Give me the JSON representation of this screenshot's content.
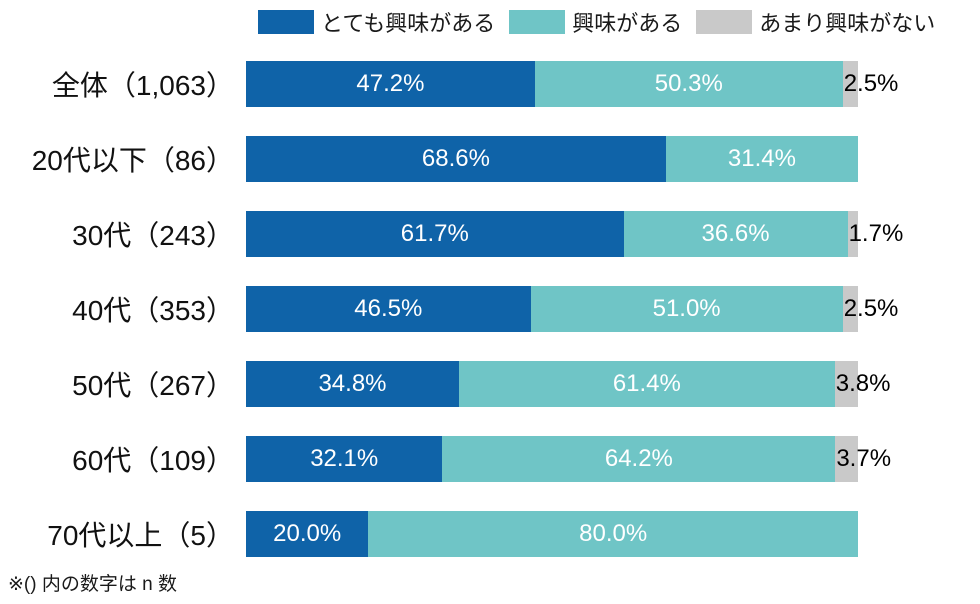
{
  "legend": [
    {
      "label": "とても興味がある",
      "color": "#0F63A8"
    },
    {
      "label": "興味がある",
      "color": "#6FC5C6"
    },
    {
      "label": "あまり興味がない",
      "color": "#C9C9C9"
    }
  ],
  "footnote": "※() 内の数字は n 数",
  "chart_data": {
    "type": "bar",
    "orientation": "horizontal-stacked",
    "title": "",
    "xlabel": "",
    "ylabel": "",
    "xlim": [
      0,
      100
    ],
    "grid": false,
    "legend_position": "top",
    "value_suffix": "%",
    "value_decimals": 1,
    "categories": [
      "全体（1,063）",
      "20代以下（86）",
      "30代（243）",
      "40代（353）",
      "50代（267）",
      "60代（109）",
      "70代以上（5）"
    ],
    "series": [
      {
        "name": "とても興味がある",
        "color": "#0F63A8",
        "values": [
          47.2,
          68.6,
          61.7,
          46.5,
          34.8,
          32.1,
          20.0
        ]
      },
      {
        "name": "興味がある",
        "color": "#6FC5C6",
        "values": [
          50.3,
          31.4,
          36.6,
          51.0,
          61.4,
          64.2,
          80.0
        ]
      },
      {
        "name": "あまり興味がない",
        "color": "#C9C9C9",
        "values": [
          2.5,
          0,
          1.7,
          2.5,
          3.8,
          3.7,
          0
        ]
      }
    ]
  }
}
